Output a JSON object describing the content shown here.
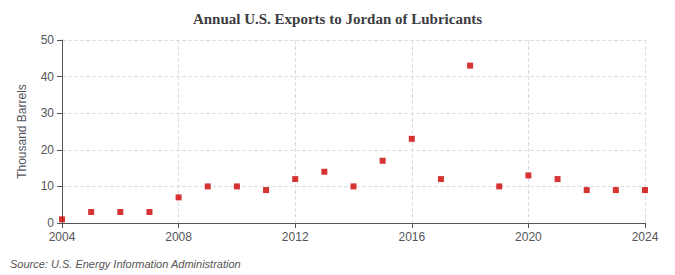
{
  "chart_data": {
    "type": "scatter",
    "title": "Annual U.S. Exports to Jordan of Lubricants",
    "ylabel": "Thousand Barrels",
    "source": "Source: U.S. Energy Information Administration",
    "x": [
      2004,
      2005,
      2006,
      2007,
      2008,
      2009,
      2010,
      2011,
      2012,
      2013,
      2014,
      2015,
      2016,
      2017,
      2018,
      2019,
      2020,
      2021,
      2022,
      2023,
      2024
    ],
    "values": [
      1,
      3,
      3,
      3,
      7,
      10,
      10,
      9,
      12,
      14,
      10,
      17,
      23,
      12,
      43,
      10,
      13,
      12,
      9,
      9,
      9
    ],
    "color": "#cc0000",
    "marker": "square",
    "xlim": [
      2004,
      2024
    ],
    "xticks": [
      2004,
      2008,
      2012,
      2016,
      2020,
      2024
    ],
    "ylim": [
      0,
      50
    ],
    "yticks": [
      0,
      10,
      20,
      30,
      40,
      50
    ],
    "grid": true
  }
}
